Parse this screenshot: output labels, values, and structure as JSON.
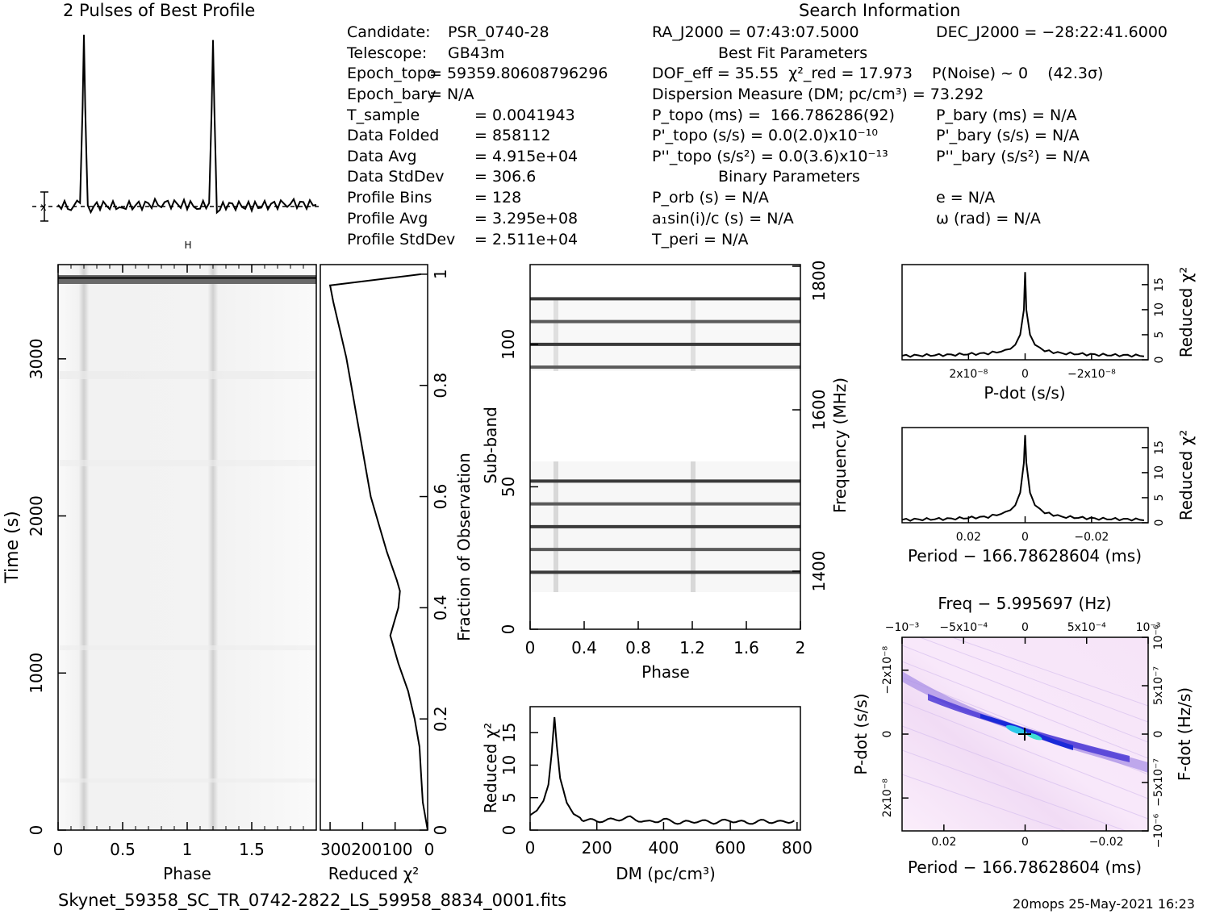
{
  "title_profile": "2 Pulses of Best Profile",
  "title_search": "Search Information",
  "info_left": [
    {
      "label": "Candidate:",
      "value": "PSR_0740-28"
    },
    {
      "label": "Telescope:",
      "value": "GB43m"
    },
    {
      "label": "Epoch_topo",
      "value": "= 59359.80608796296"
    },
    {
      "label": "Epoch_bary",
      "value": "= N/A"
    },
    {
      "label": "T_sample",
      "value": "= 0.0041943"
    },
    {
      "label": "Data Folded",
      "value": "= 858112"
    },
    {
      "label": "Data Avg",
      "value": "= 4.915e+04"
    },
    {
      "label": "Data StdDev",
      "value": "= 306.6"
    },
    {
      "label": "Profile Bins",
      "value": "= 128"
    },
    {
      "label": "Profile Avg",
      "value": "= 3.295e+08"
    },
    {
      "label": "Profile StdDev",
      "value": "= 2.511e+04"
    }
  ],
  "info_mid": {
    "ra": "RA_J2000 = 07:43:07.5000",
    "best_fit_header": "Best Fit Parameters",
    "dof": "DOF_eff = 35.55  χ²_red = 17.973",
    "dm": "Dispersion Measure (DM; pc/cm³) = 73.292",
    "p_topo": "P_topo (ms) =  166.786286(92)",
    "pd_topo": "P'_topo (s/s) = 0.0(2.0)x10⁻¹⁰",
    "pdd_topo": "P''_topo (s/s²) = 0.0(3.6)x10⁻¹³",
    "binary_header": "Binary Parameters",
    "p_orb": "P_orb (s) = N/A",
    "a1": "a₁sin(i)/c (s) = N/A",
    "t_peri": "T_peri = N/A"
  },
  "info_right": {
    "dec": "DEC_J2000 = −28:22:41.6000",
    "p_noise": "P(Noise) ~ 0    (42.3σ)",
    "p_bary": "P_bary (ms) = N/A",
    "pd_bary": "P'_bary (s/s) = N/A",
    "pdd_bary": "P''_bary (s/s²) = N/A",
    "ecc": "e = N/A",
    "omega": "ω (rad) = N/A"
  },
  "footer_file": "Skynet_59358_SC_TR_0742-2822_LS_59958_8834_0001.fits",
  "footer_stamp": "20mops 25-May-2021 16:23",
  "labels": {
    "time_s": "Time (s)",
    "phase": "Phase",
    "reduced_chi2": "Reduced χ²",
    "fraction_obs": "Fraction of Observation",
    "sub_band": "Sub-band",
    "frequency": "Frequency (MHz)",
    "dm_axis": "DM (pc/cm³)",
    "pdot_axis": "P-dot (s/s)",
    "period_axis": "Period − 166.78628604 (ms)",
    "freq_axis": "Freq − 5.995697 (Hz)",
    "fdot_axis": "F-dot (Hz/s)"
  },
  "chart_data": [
    {
      "type": "line",
      "panel": "pulse_profile",
      "title": "2 Pulses of Best Profile",
      "x_phase": [
        0,
        0.1,
        0.17,
        0.19,
        0.2,
        0.21,
        0.23,
        0.3,
        0.5,
        0.8,
        1.0,
        1.1,
        1.17,
        1.19,
        1.2,
        1.21,
        1.23,
        1.3,
        1.5,
        1.8,
        2.0
      ],
      "y_rel": [
        0.05,
        0.04,
        0.06,
        0.6,
        1.0,
        0.6,
        0.02,
        0.05,
        0.04,
        0.06,
        0.05,
        0.04,
        0.06,
        0.6,
        0.97,
        0.6,
        0.02,
        0.05,
        0.04,
        0.06,
        0.05
      ]
    },
    {
      "type": "heatmap",
      "panel": "time_vs_phase",
      "xlabel": "Phase",
      "ylabel": "Time (s)",
      "xlim": [
        0,
        2
      ],
      "ylim": [
        0,
        3600
      ],
      "x_ticks": [
        "0",
        "0.5",
        "1",
        "1.5"
      ],
      "y_ticks": [
        "0",
        "1000",
        "2000",
        "3000"
      ],
      "pulse_phases": [
        0.2,
        1.2
      ]
    },
    {
      "type": "line",
      "panel": "reduced_chi2_vs_fraction",
      "xlabel": "Reduced χ²",
      "ylabel": "Fraction of Observation",
      "x_ticks": [
        "300",
        "200",
        "100",
        "0"
      ],
      "y_ticks": [
        "0",
        "0.2",
        "0.4",
        "0.6",
        "0.8",
        "1"
      ],
      "fraction": [
        0,
        0.05,
        0.1,
        0.15,
        0.2,
        0.25,
        0.3,
        0.35,
        0.38,
        0.4,
        0.43,
        0.45,
        0.5,
        0.55,
        0.6,
        0.65,
        0.7,
        0.75,
        0.8,
        0.85,
        0.9,
        0.95,
        0.98,
        1.0
      ],
      "chi2": [
        0,
        15,
        20,
        25,
        40,
        60,
        90,
        115,
        100,
        90,
        85,
        95,
        125,
        150,
        175,
        190,
        205,
        220,
        235,
        250,
        270,
        290,
        300,
        20
      ]
    },
    {
      "type": "heatmap",
      "panel": "subband_vs_phase",
      "xlabel": "Phase",
      "ylabel": "Sub-band",
      "xlim": [
        0,
        2
      ],
      "ylim": [
        0,
        128
      ],
      "x_ticks": [
        "0",
        "0.4",
        "0.8",
        "1.2",
        "1.6",
        "2"
      ],
      "y_ticks": [
        "0",
        "50",
        "100"
      ],
      "right_ticks": [
        "1400",
        "1600",
        "1800"
      ],
      "dark_subbands": [
        20,
        28,
        36,
        44,
        52,
        92,
        100,
        108,
        116
      ]
    },
    {
      "type": "line",
      "panel": "chi2_vs_dm",
      "xlabel": "DM (pc/cm³)",
      "ylabel": "Reduced χ²",
      "xlim": [
        0,
        810
      ],
      "ylim": [
        0,
        19
      ],
      "x_ticks": [
        "0",
        "200",
        "400",
        "600",
        "800"
      ],
      "y_ticks": [
        "0",
        "5",
        "10",
        "15"
      ],
      "x": [
        0,
        20,
        40,
        55,
        65,
        73,
        80,
        90,
        110,
        130,
        160,
        200,
        250,
        300,
        350,
        400,
        450,
        500,
        550,
        600,
        650,
        700,
        750,
        800
      ],
      "y": [
        2.3,
        3,
        4.5,
        7,
        12,
        17.4,
        13,
        8,
        4.2,
        2.5,
        1.6,
        1.4,
        1.6,
        1.9,
        1.2,
        1.6,
        1.1,
        1.4,
        1.2,
        1.5,
        1.1,
        1.4,
        1.2,
        1.5
      ]
    },
    {
      "type": "line",
      "panel": "chi2_vs_pdot",
      "xlabel": "P-dot (s/s)",
      "ylabel": "Reduced χ²",
      "ylim": [
        0,
        19
      ],
      "x_ticks": [
        "2x10⁻⁸",
        "0",
        "−2x10⁻⁸"
      ],
      "y_ticks": [
        "0",
        "5",
        "10",
        "15"
      ],
      "x_rel": [
        0,
        0.2,
        0.35,
        0.42,
        0.46,
        0.48,
        0.495,
        0.5,
        0.505,
        0.52,
        0.54,
        0.58,
        0.65,
        0.8,
        1
      ],
      "y": [
        0.8,
        1.0,
        1.3,
        1.8,
        3,
        5,
        10,
        17.5,
        10,
        5,
        3,
        1.8,
        1.3,
        1.0,
        0.8
      ]
    },
    {
      "type": "line",
      "panel": "chi2_vs_period",
      "xlabel": "Period − 166.78628604 (ms)",
      "ylabel": "Reduced χ²",
      "ylim": [
        0,
        19
      ],
      "x_ticks": [
        "0.02",
        "0",
        "−0.02"
      ],
      "y_ticks": [
        "0",
        "5",
        "10",
        "15"
      ],
      "x_rel": [
        0,
        0.2,
        0.35,
        0.42,
        0.46,
        0.48,
        0.495,
        0.5,
        0.505,
        0.52,
        0.54,
        0.58,
        0.65,
        0.8,
        1
      ],
      "y": [
        0.6,
        0.8,
        1.2,
        2,
        3.5,
        6,
        12,
        17.5,
        12,
        6,
        3.5,
        2,
        1.2,
        0.8,
        0.6
      ]
    },
    {
      "type": "heatmap",
      "panel": "pdot_vs_period",
      "xlabel": "Period − 166.78628604 (ms)",
      "ylabel": "P-dot (s/s)",
      "top_label": "Freq − 5.995697 (Hz)",
      "right_label": "F-dot (Hz/s)",
      "x_ticks": [
        "0.02",
        "0",
        "−0.02"
      ],
      "top_ticks": [
        "−10⁻³",
        "−5x10⁻⁴",
        "0",
        "5x10⁻⁴",
        "10⁻³"
      ],
      "y_ticks": [
        "2x10⁻⁸",
        "0",
        "−2x10⁻⁸"
      ],
      "right_ticks": [
        "−10⁻⁶",
        "−5x10⁻⁷",
        "0",
        "5x10⁻⁷",
        "10⁻⁶"
      ]
    }
  ]
}
